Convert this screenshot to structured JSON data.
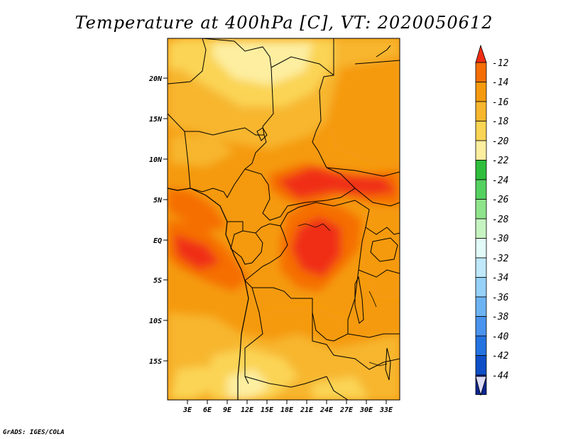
{
  "title": "Temperature at 400hPa [C], VT: 2020050612",
  "credit": "GrADS: IGES/COLA",
  "map": {
    "lat_labels": [
      "20N",
      "15N",
      "10N",
      "5N",
      "EQ",
      "5S",
      "10S",
      "15S"
    ],
    "lon_labels": [
      "3E",
      "6E",
      "9E",
      "12E",
      "15E",
      "18E",
      "21E",
      "24E",
      "27E",
      "30E",
      "33E"
    ],
    "region": "Central Africa",
    "variable": "Temperature",
    "level": "400hPa",
    "units": "C"
  },
  "colorbar": {
    "labels": [
      "-12",
      "-14",
      "-16",
      "-18",
      "-20",
      "-22",
      "-24",
      "-26",
      "-28",
      "-30",
      "-32",
      "-34",
      "-36",
      "-38",
      "-40",
      "-42",
      "-44"
    ],
    "colors": [
      "#f02d14",
      "#f56e05",
      "#f59a0f",
      "#f7b62d",
      "#fbd454",
      "#fdeea0",
      "#2fbe3c",
      "#55d160",
      "#8fe48b",
      "#c6f4c1",
      "#e3fbf8",
      "#bfe8fb",
      "#96d1f9",
      "#6db3f3",
      "#4a93ee",
      "#2473e1",
      "#0e4fc7",
      "#0d2591"
    ],
    "bottom_tip": "#dcdcf6",
    "top_tip": "#f02d14"
  }
}
